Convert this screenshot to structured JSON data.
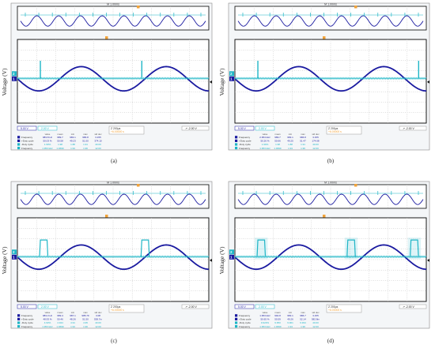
{
  "figure": {
    "y_axis_label": "Voltage (V)",
    "colors": {
      "sine": "#1a1aa0",
      "trigger": "#1fb6c6",
      "grid": "#bfbfbf",
      "frame": "#000000",
      "marker": "#f2a33a",
      "screen_bg": "#f4f6f8"
    },
    "icons": [
      "trigger-marker-icon",
      "channel-1-marker-icon",
      "channel-2-marker-icon"
    ]
  },
  "chart_data": [
    {
      "type": "line",
      "panel": "(a)",
      "header": {
        "timebase": "M 1.00ms",
        "trigger_time": "Z 200µs",
        "trigger_pos": "+6.00000 s",
        "ch1_scale": "5.00 V",
        "ch2_scale": "2.00 V",
        "trigger_level": "-2.00 V"
      },
      "series": [
        {
          "name": "sine",
          "amplitude": 1,
          "cycles_shown": 2.25,
          "phase_deg": 180
        },
        {
          "name": "pulse",
          "kind": "spike",
          "pulse_positions": [
            0.12,
            0.65
          ],
          "pulse_width": 0.008
        }
      ],
      "measurements": [
        {
          "label": "Frequency",
          "values": [
            "983.8 Hz",
            "989.7",
            "983.1",
            "986.8",
            "3.155"
          ]
        },
        {
          "label": "+Duty cycle",
          "values": [
            "50.03 %",
            "50.58",
            "49.23",
            "51.00",
            "374.10"
          ]
        },
        {
          "label": "-Duty cycle",
          "values": [
            "1.90%",
            "1.98",
            "1.88",
            "1.91",
            "40.00"
          ]
        },
        {
          "label": "Frequency",
          "values": [
            "1.953 kHz",
            "1.9699",
            "1.94",
            "1.96",
            "12.00"
          ]
        }
      ]
    },
    {
      "type": "line",
      "panel": "(b)",
      "header": {
        "timebase": "M 1.00ms",
        "trigger_time": "Z 200µs",
        "trigger_pos": "+6.00000 s",
        "ch1_scale": "5.00 V",
        "ch2_scale": "2.00 V",
        "trigger_level": "-2.00 V"
      },
      "series": [
        {
          "name": "sine",
          "amplitude": 1,
          "cycles_shown": 2.25,
          "phase_deg": 180
        },
        {
          "name": "pulse",
          "kind": "spike",
          "pulse_positions": [
            0.12,
            0.96
          ],
          "pulse_width": 0.008
        }
      ],
      "measurements": [
        {
          "label": "Frequency",
          "values": [
            "2.954 kHz",
            "989.7",
            "983.1",
            "986.8",
            "3.155"
          ]
        },
        {
          "label": "+Duty cycle",
          "values": [
            "50.26 %",
            "50.66",
            "49.25",
            "51.47",
            "174.08"
          ]
        },
        {
          "label": "-Duty cycle",
          "values": [
            "1.90%",
            "1.98",
            "1.88",
            "1.91",
            "40.00"
          ]
        },
        {
          "label": "Frequency",
          "values": [
            "1.953 kHz",
            "1.9699",
            "1.94",
            "1.96",
            "12.00"
          ]
        }
      ]
    },
    {
      "type": "line",
      "panel": "(c)",
      "header": {
        "timebase": "M 1.00ms",
        "trigger_time": "Z 200µs",
        "trigger_pos": "+6.00000 s",
        "ch1_scale": "5.00 V",
        "ch2_scale": "2.00 V",
        "trigger_level": "-2.00 V"
      },
      "series": [
        {
          "name": "sine",
          "amplitude": 1,
          "cycles_shown": 2.25,
          "phase_deg": 180
        },
        {
          "name": "pulse",
          "kind": "square",
          "pulse_positions": [
            0.12,
            0.65
          ],
          "pulse_width": 0.035
        }
      ],
      "measurements": [
        {
          "label": "Frequency",
          "values": [
            "983.3 Hz",
            "989.4",
            "987.1",
            "985.79",
            "3.08"
          ]
        },
        {
          "label": "+Duty cycle",
          "values": [
            "48.93 %",
            "50.46",
            "48.26",
            "51.50",
            "538.7m"
          ]
        },
        {
          "label": "-Duty cycle",
          "values": [
            "4.93%",
            "4.944",
            "4.91",
            "4.95",
            "40.00"
          ]
        },
        {
          "label": "Frequency",
          "values": [
            "1.953 kHz",
            "1.9699",
            "1.94",
            "1.96",
            "12.00"
          ]
        }
      ]
    },
    {
      "type": "line",
      "panel": "(d)",
      "header": {
        "timebase": "M 1.00ms",
        "trigger_time": "Z 200µs",
        "trigger_pos": "+6.00000 s",
        "ch1_scale": "5.00 V",
        "ch2_scale": "2.00 V",
        "trigger_level": "-2.00 V"
      },
      "series": [
        {
          "name": "sine",
          "amplitude": 1,
          "cycles_shown": 2.25,
          "phase_deg": 180
        },
        {
          "name": "pulse",
          "kind": "square",
          "pulse_positions": [
            0.12,
            0.59,
            0.92
          ],
          "pulse_width": 0.035
        }
      ],
      "measurements": [
        {
          "label": "Frequency",
          "values": [
            "1.953 kHz",
            "994.8",
            "983.1",
            "986.7",
            "3.155"
          ]
        },
        {
          "label": "+Duty cycle",
          "values": [
            "50.65 %",
            "50.59",
            "49.26",
            "52.14",
            "582.8m"
          ]
        },
        {
          "label": "-Duty cycle",
          "values": [
            "9.923%",
            "9.950",
            "9.901",
            "9.934",
            "40.00"
          ]
        },
        {
          "label": "Frequency",
          "values": [
            "1.953 kHz",
            "1.9699",
            "1.94",
            "1.96",
            "12.00"
          ]
        }
      ]
    }
  ]
}
